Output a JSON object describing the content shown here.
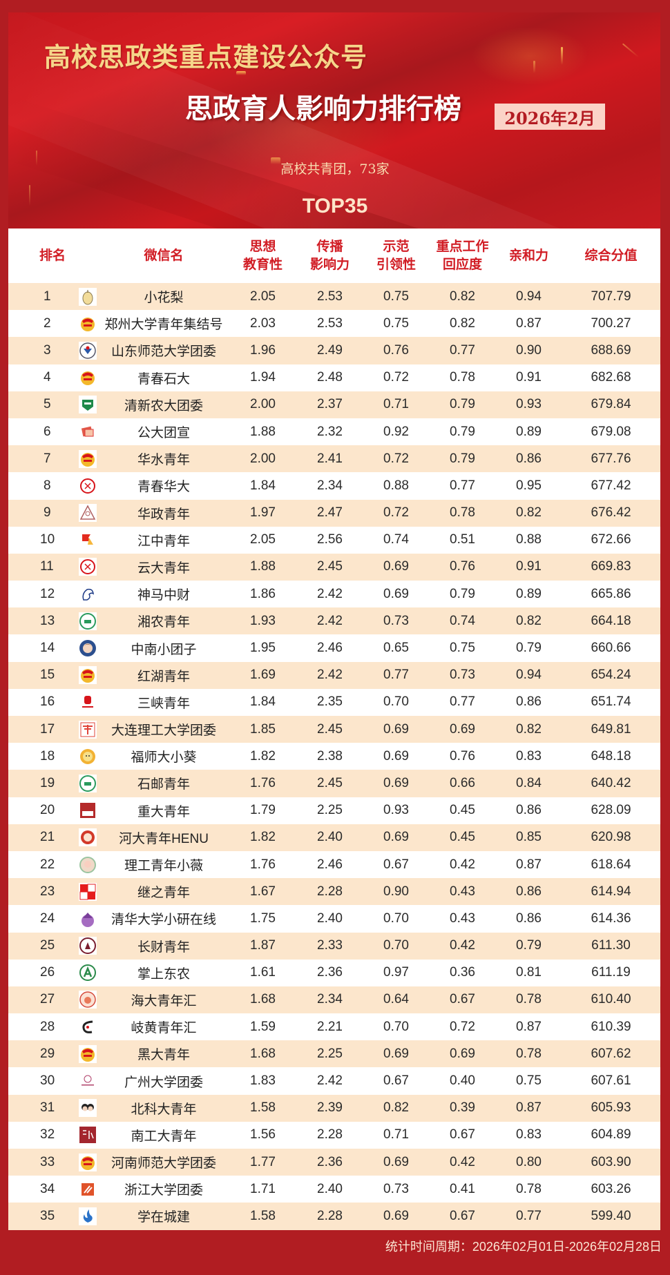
{
  "header": {
    "title_top": "高校思政类重点建设公众号",
    "title_main": "思政育人影响力排行榜",
    "date_badge": "2026年2月",
    "subtitle": "高校共青团，73家",
    "top_label": "TOP35"
  },
  "colors": {
    "background_red": "#b11d22",
    "title_gold": "#f6d68a",
    "header_text_red": "#d11c24",
    "stripe_beige": "#fce6cc",
    "badge_pink": "#fbd3c7"
  },
  "table": {
    "columns": [
      {
        "key": "rank",
        "label": "排名"
      },
      {
        "key": "logo",
        "label": ""
      },
      {
        "key": "name",
        "label": "微信名"
      },
      {
        "key": "c1",
        "label_line1": "思想",
        "label_line2": "教育性"
      },
      {
        "key": "c2",
        "label_line1": "传播",
        "label_line2": "影响力"
      },
      {
        "key": "c3",
        "label_line1": "示范",
        "label_line2": "引领性"
      },
      {
        "key": "c4",
        "label_line1": "重点工作",
        "label_line2": "回应度"
      },
      {
        "key": "c5",
        "label": "亲和力"
      },
      {
        "key": "total",
        "label": "综合分值"
      }
    ],
    "rows": [
      {
        "rank": "1",
        "name": "小花梨",
        "icon": "pear-mascot-icon",
        "c1": "2.05",
        "c2": "2.53",
        "c3": "0.75",
        "c4": "0.82",
        "c5": "0.94",
        "total": "707.79"
      },
      {
        "rank": "2",
        "name": "郑州大学青年集结号",
        "icon": "youth-league-emblem-icon",
        "c1": "2.03",
        "c2": "2.53",
        "c3": "0.75",
        "c4": "0.82",
        "c5": "0.87",
        "total": "700.27"
      },
      {
        "rank": "3",
        "name": "山东师范大学团委",
        "icon": "university-seal-icon",
        "c1": "1.96",
        "c2": "2.49",
        "c3": "0.76",
        "c4": "0.77",
        "c5": "0.90",
        "total": "688.69"
      },
      {
        "rank": "4",
        "name": "青春石大",
        "icon": "youth-league-emblem-icon",
        "c1": "1.94",
        "c2": "2.48",
        "c3": "0.72",
        "c4": "0.78",
        "c5": "0.91",
        "total": "682.68"
      },
      {
        "rank": "5",
        "name": "清新农大团委",
        "icon": "green-shield-icon",
        "c1": "2.00",
        "c2": "2.37",
        "c3": "0.71",
        "c4": "0.79",
        "c5": "0.93",
        "total": "679.84"
      },
      {
        "rank": "6",
        "name": "公大团宣",
        "icon": "red-book-icon",
        "c1": "1.88",
        "c2": "2.32",
        "c3": "0.92",
        "c4": "0.79",
        "c5": "0.89",
        "total": "679.08"
      },
      {
        "rank": "7",
        "name": "华水青年",
        "icon": "youth-league-emblem-icon",
        "c1": "2.00",
        "c2": "2.41",
        "c3": "0.72",
        "c4": "0.79",
        "c5": "0.86",
        "total": "677.76"
      },
      {
        "rank": "8",
        "name": "青春华大",
        "icon": "red-circle-seal-icon",
        "c1": "1.84",
        "c2": "2.34",
        "c3": "0.88",
        "c4": "0.77",
        "c5": "0.95",
        "total": "677.42"
      },
      {
        "rank": "9",
        "name": "华政青年",
        "icon": "triangle-seal-icon",
        "c1": "1.97",
        "c2": "2.47",
        "c3": "0.72",
        "c4": "0.78",
        "c5": "0.82",
        "total": "676.42"
      },
      {
        "rank": "10",
        "name": "江中青年",
        "icon": "red-flag-icon",
        "c1": "2.05",
        "c2": "2.56",
        "c3": "0.74",
        "c4": "0.51",
        "c5": "0.88",
        "total": "672.66"
      },
      {
        "rank": "11",
        "name": "云大青年",
        "icon": "red-circle-seal-icon",
        "c1": "1.88",
        "c2": "2.45",
        "c3": "0.69",
        "c4": "0.76",
        "c5": "0.91",
        "total": "669.83"
      },
      {
        "rank": "12",
        "name": "神马中财",
        "icon": "horse-head-icon",
        "c1": "1.86",
        "c2": "2.42",
        "c3": "0.69",
        "c4": "0.79",
        "c5": "0.89",
        "total": "665.86"
      },
      {
        "rank": "13",
        "name": "湘农青年",
        "icon": "green-circle-seal-icon",
        "c1": "1.93",
        "c2": "2.42",
        "c3": "0.73",
        "c4": "0.74",
        "c5": "0.82",
        "total": "664.18"
      },
      {
        "rank": "14",
        "name": "中南小团子",
        "icon": "avatar-girl-icon",
        "c1": "1.95",
        "c2": "2.46",
        "c3": "0.65",
        "c4": "0.75",
        "c5": "0.79",
        "total": "660.66"
      },
      {
        "rank": "15",
        "name": "红湖青年",
        "icon": "youth-league-emblem-icon",
        "c1": "1.69",
        "c2": "2.42",
        "c3": "0.77",
        "c4": "0.73",
        "c5": "0.94",
        "total": "654.24"
      },
      {
        "rank": "16",
        "name": "三峡青年",
        "icon": "red-stamp-icon",
        "c1": "1.84",
        "c2": "2.35",
        "c3": "0.70",
        "c4": "0.77",
        "c5": "0.86",
        "total": "651.74"
      },
      {
        "rank": "17",
        "name": "大连理工大学团委",
        "icon": "red-calligraphy-icon",
        "c1": "1.85",
        "c2": "2.45",
        "c3": "0.69",
        "c4": "0.69",
        "c5": "0.82",
        "total": "649.81"
      },
      {
        "rank": "18",
        "name": "福师大小葵",
        "icon": "sunflower-mascot-icon",
        "c1": "1.82",
        "c2": "2.38",
        "c3": "0.69",
        "c4": "0.76",
        "c5": "0.83",
        "total": "648.18"
      },
      {
        "rank": "19",
        "name": "石邮青年",
        "icon": "green-circle-seal-icon",
        "c1": "1.76",
        "c2": "2.45",
        "c3": "0.69",
        "c4": "0.66",
        "c5": "0.84",
        "total": "640.42"
      },
      {
        "rank": "20",
        "name": "重大青年",
        "icon": "red-square-badge-icon",
        "c1": "1.79",
        "c2": "2.25",
        "c3": "0.93",
        "c4": "0.45",
        "c5": "0.86",
        "total": "628.09"
      },
      {
        "rank": "21",
        "name": "河大青年HENU",
        "icon": "red-flower-badge-icon",
        "c1": "1.82",
        "c2": "2.40",
        "c3": "0.69",
        "c4": "0.45",
        "c5": "0.85",
        "total": "620.98"
      },
      {
        "rank": "22",
        "name": "理工青年小薇",
        "icon": "cartoon-girl-icon",
        "c1": "1.76",
        "c2": "2.46",
        "c3": "0.67",
        "c4": "0.42",
        "c5": "0.87",
        "total": "618.64"
      },
      {
        "rank": "23",
        "name": "继之青年",
        "icon": "red-character-tiles-icon",
        "c1": "1.67",
        "c2": "2.28",
        "c3": "0.90",
        "c4": "0.43",
        "c5": "0.86",
        "total": "614.94"
      },
      {
        "rank": "24",
        "name": "清华大学小研在线",
        "icon": "purple-building-icon",
        "c1": "1.75",
        "c2": "2.40",
        "c3": "0.70",
        "c4": "0.43",
        "c5": "0.86",
        "total": "614.36"
      },
      {
        "rank": "25",
        "name": "长财青年",
        "icon": "maroon-circle-seal-icon",
        "c1": "1.87",
        "c2": "2.33",
        "c3": "0.70",
        "c4": "0.42",
        "c5": "0.79",
        "total": "611.30"
      },
      {
        "rank": "26",
        "name": "掌上东农",
        "icon": "green-letter-a-icon",
        "c1": "1.61",
        "c2": "2.36",
        "c3": "0.97",
        "c4": "0.36",
        "c5": "0.81",
        "total": "611.19"
      },
      {
        "rank": "27",
        "name": "海大青年汇",
        "icon": "cartoon-circle-icon",
        "c1": "1.68",
        "c2": "2.34",
        "c3": "0.64",
        "c4": "0.67",
        "c5": "0.78",
        "total": "610.40"
      },
      {
        "rank": "28",
        "name": "岐黄青年汇",
        "icon": "ink-brush-icon",
        "c1": "1.59",
        "c2": "2.21",
        "c3": "0.70",
        "c4": "0.72",
        "c5": "0.87",
        "total": "610.39"
      },
      {
        "rank": "29",
        "name": "黑大青年",
        "icon": "youth-league-emblem-icon",
        "c1": "1.68",
        "c2": "2.25",
        "c3": "0.69",
        "c4": "0.69",
        "c5": "0.78",
        "total": "607.62"
      },
      {
        "rank": "30",
        "name": "广州大学团委",
        "icon": "small-pink-logo-icon",
        "c1": "1.83",
        "c2": "2.42",
        "c3": "0.67",
        "c4": "0.40",
        "c5": "0.75",
        "total": "607.61"
      },
      {
        "rank": "31",
        "name": "北科大青年",
        "icon": "two-cartoon-kids-icon",
        "c1": "1.58",
        "c2": "2.39",
        "c3": "0.82",
        "c4": "0.39",
        "c5": "0.87",
        "total": "605.93"
      },
      {
        "rank": "32",
        "name": "南工大青年",
        "icon": "maroon-calligraphy-icon",
        "c1": "1.56",
        "c2": "2.28",
        "c3": "0.71",
        "c4": "0.67",
        "c5": "0.83",
        "total": "604.89"
      },
      {
        "rank": "33",
        "name": "河南师范大学团委",
        "icon": "youth-league-emblem-icon",
        "c1": "1.77",
        "c2": "2.36",
        "c3": "0.69",
        "c4": "0.42",
        "c5": "0.80",
        "total": "603.90"
      },
      {
        "rank": "34",
        "name": "浙江大学团委",
        "icon": "orange-square-logo-icon",
        "c1": "1.71",
        "c2": "2.40",
        "c3": "0.73",
        "c4": "0.41",
        "c5": "0.78",
        "total": "603.26"
      },
      {
        "rank": "35",
        "name": "学在城建",
        "icon": "blue-flame-icon",
        "c1": "1.58",
        "c2": "2.28",
        "c3": "0.69",
        "c4": "0.67",
        "c5": "0.77",
        "total": "599.40"
      }
    ]
  },
  "footer": {
    "period": "统计时间周期：2026年02月01日-2026年02月28日"
  }
}
